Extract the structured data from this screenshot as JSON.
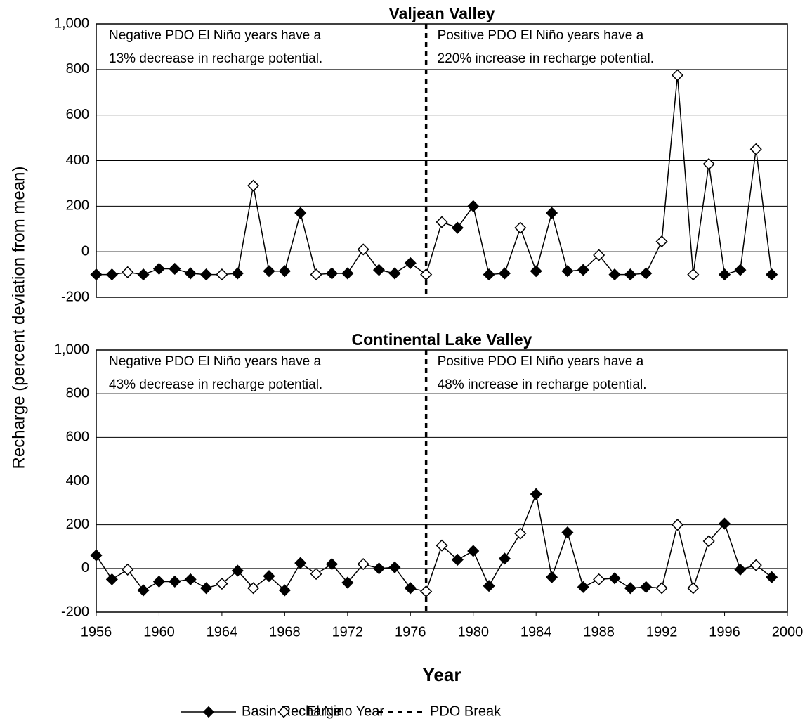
{
  "chart_data": [
    {
      "type": "line",
      "title": "Valjean Valley",
      "ylabel": "Recharge (percent deviation from mean)",
      "x": [
        1956,
        1957,
        1958,
        1959,
        1960,
        1961,
        1962,
        1963,
        1964,
        1965,
        1966,
        1967,
        1968,
        1969,
        1970,
        1971,
        1972,
        1973,
        1974,
        1975,
        1976,
        1977,
        1978,
        1979,
        1980,
        1981,
        1982,
        1983,
        1984,
        1985,
        1986,
        1987,
        1988,
        1989,
        1990,
        1991,
        1992,
        1993,
        1994,
        1995,
        1996,
        1997,
        1998,
        1999
      ],
      "series": [
        {
          "name": "Basin Recharge",
          "color": "#000000",
          "values": [
            -100,
            -100,
            null,
            -100,
            -75,
            -75,
            -95,
            -100,
            null,
            -95,
            null,
            -85,
            -85,
            170,
            null,
            -95,
            -95,
            null,
            -80,
            -95,
            -50,
            null,
            null,
            105,
            200,
            -100,
            -95,
            null,
            -85,
            170,
            -85,
            -80,
            null,
            -100,
            -100,
            -95,
            null,
            null,
            null,
            null,
            -100,
            -80,
            null,
            -100
          ]
        },
        {
          "name": "El Nino Year",
          "color": "#000000",
          "values": [
            null,
            null,
            -90,
            null,
            null,
            null,
            null,
            null,
            -100,
            null,
            290,
            null,
            null,
            null,
            -100,
            null,
            null,
            10,
            null,
            null,
            null,
            -100,
            130,
            null,
            null,
            null,
            null,
            105,
            null,
            null,
            null,
            null,
            -15,
            null,
            null,
            null,
            45,
            775,
            -100,
            385,
            null,
            null,
            450,
            null
          ]
        }
      ],
      "vline": {
        "name": "PDO Break",
        "x": 1977
      },
      "annotations": [
        [
          "Negative PDO El Niño years have a",
          "13% decrease in recharge potential."
        ],
        [
          "Positive PDO El Niño years have a",
          "220% increase in recharge potential."
        ]
      ],
      "xlim": [
        1956,
        2000
      ],
      "ylim": [
        -200,
        1000
      ],
      "yticks": [
        -200,
        0,
        200,
        400,
        600,
        800,
        {
          "value": 1000,
          "label": "1,000"
        }
      ],
      "grid": true
    },
    {
      "type": "line",
      "title": "Continental Lake Valley",
      "xlabel": "Year",
      "x": [
        1956,
        1957,
        1958,
        1959,
        1960,
        1961,
        1962,
        1963,
        1964,
        1965,
        1966,
        1967,
        1968,
        1969,
        1970,
        1971,
        1972,
        1973,
        1974,
        1975,
        1976,
        1977,
        1978,
        1979,
        1980,
        1981,
        1982,
        1983,
        1984,
        1985,
        1986,
        1987,
        1988,
        1989,
        1990,
        1991,
        1992,
        1993,
        1994,
        1995,
        1996,
        1997,
        1998,
        1999
      ],
      "series": [
        {
          "name": "Basin Recharge",
          "color": "#000000",
          "values": [
            60,
            -50,
            null,
            -100,
            -60,
            -60,
            -50,
            -90,
            null,
            -10,
            null,
            -35,
            -100,
            25,
            null,
            20,
            -65,
            null,
            0,
            5,
            -90,
            null,
            null,
            40,
            80,
            -80,
            45,
            null,
            340,
            -40,
            165,
            -85,
            null,
            -45,
            -90,
            -85,
            null,
            null,
            null,
            null,
            205,
            -5,
            null,
            -40
          ]
        },
        {
          "name": "El Nino Year",
          "color": "#000000",
          "values": [
            null,
            null,
            -5,
            null,
            null,
            null,
            null,
            null,
            -70,
            null,
            -90,
            null,
            null,
            null,
            -25,
            null,
            null,
            20,
            null,
            null,
            null,
            -105,
            105,
            null,
            null,
            null,
            null,
            160,
            null,
            null,
            null,
            null,
            -50,
            null,
            null,
            null,
            -90,
            200,
            -90,
            125,
            null,
            null,
            15,
            null
          ]
        }
      ],
      "vline": {
        "name": "PDO Break",
        "x": 1977
      },
      "annotations": [
        [
          "Negative PDO El Niño years have a",
          "43% decrease in recharge potential."
        ],
        [
          "Positive PDO El Niño years have a",
          "48% increase in recharge potential."
        ]
      ],
      "xlim": [
        1956,
        2000
      ],
      "xticks": [
        1956,
        1960,
        1964,
        1968,
        1972,
        1976,
        1980,
        1984,
        1988,
        1992,
        1996,
        2000
      ],
      "ylim": [
        -200,
        1000
      ],
      "yticks": [
        -200,
        0,
        200,
        400,
        600,
        800,
        {
          "value": 1000,
          "label": "1,000"
        }
      ],
      "grid": true
    }
  ]
}
